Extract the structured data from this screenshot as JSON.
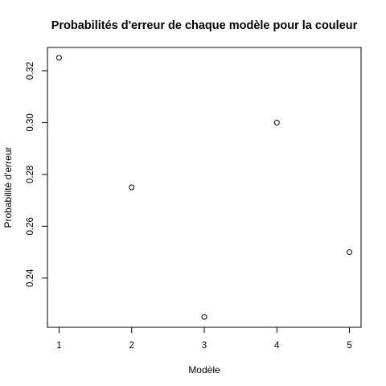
{
  "chart_data": {
    "type": "scatter",
    "title": "Probabilités d'erreur de chaque modèle pour la couleur",
    "xlabel": "Modèle",
    "ylabel": "Probabilité d'erreur",
    "x": [
      1,
      2,
      3,
      4,
      5
    ],
    "y": [
      0.325,
      0.275,
      0.225,
      0.3,
      0.25
    ],
    "xlim": [
      0.84,
      5.16
    ],
    "ylim": [
      0.221,
      0.329
    ],
    "xticks": [
      1,
      2,
      3,
      4,
      5
    ],
    "xtick_labels": [
      "1",
      "2",
      "3",
      "4",
      "5"
    ],
    "yticks": [
      0.24,
      0.26,
      0.28,
      0.3,
      0.32
    ],
    "ytick_labels": [
      "0.24",
      "0.26",
      "0.28",
      "0.30",
      "0.32"
    ],
    "grid": false,
    "marker": "open-circle",
    "colors": {
      "marker": "#000000",
      "axes": "#000000",
      "background": "#ffffff"
    }
  }
}
